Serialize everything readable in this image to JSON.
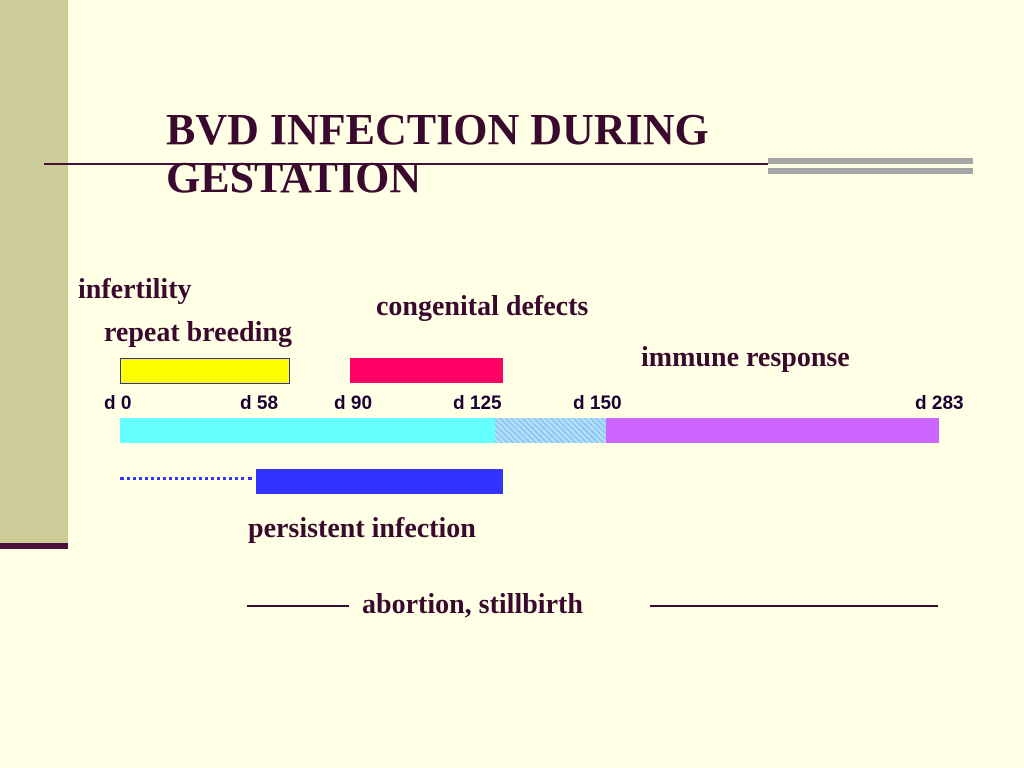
{
  "title": "BVD INFECTION DURING GESTATION",
  "labels": {
    "infertility": "infertility",
    "repeat_breeding": "repeat breeding",
    "congenital_defects": "congenital defects",
    "immune_response": "immune response",
    "persistent_infection": "persistent infection",
    "abortion": "abortion,  stillbirth"
  },
  "ticks": [
    "d 0",
    "d 58",
    "d 90",
    "d 125",
    "d 150",
    "d 283"
  ],
  "colors": {
    "background": "#FFFFE5",
    "infertility_bar": "#FFFF00",
    "congenital_bar": "#FF0066",
    "timeline_early": "#66FFFF",
    "timeline_mid": "#99CCFF",
    "timeline_late": "#CC66FF",
    "persistent_bar": "#3333FF",
    "text": "#3A0A2E"
  }
}
